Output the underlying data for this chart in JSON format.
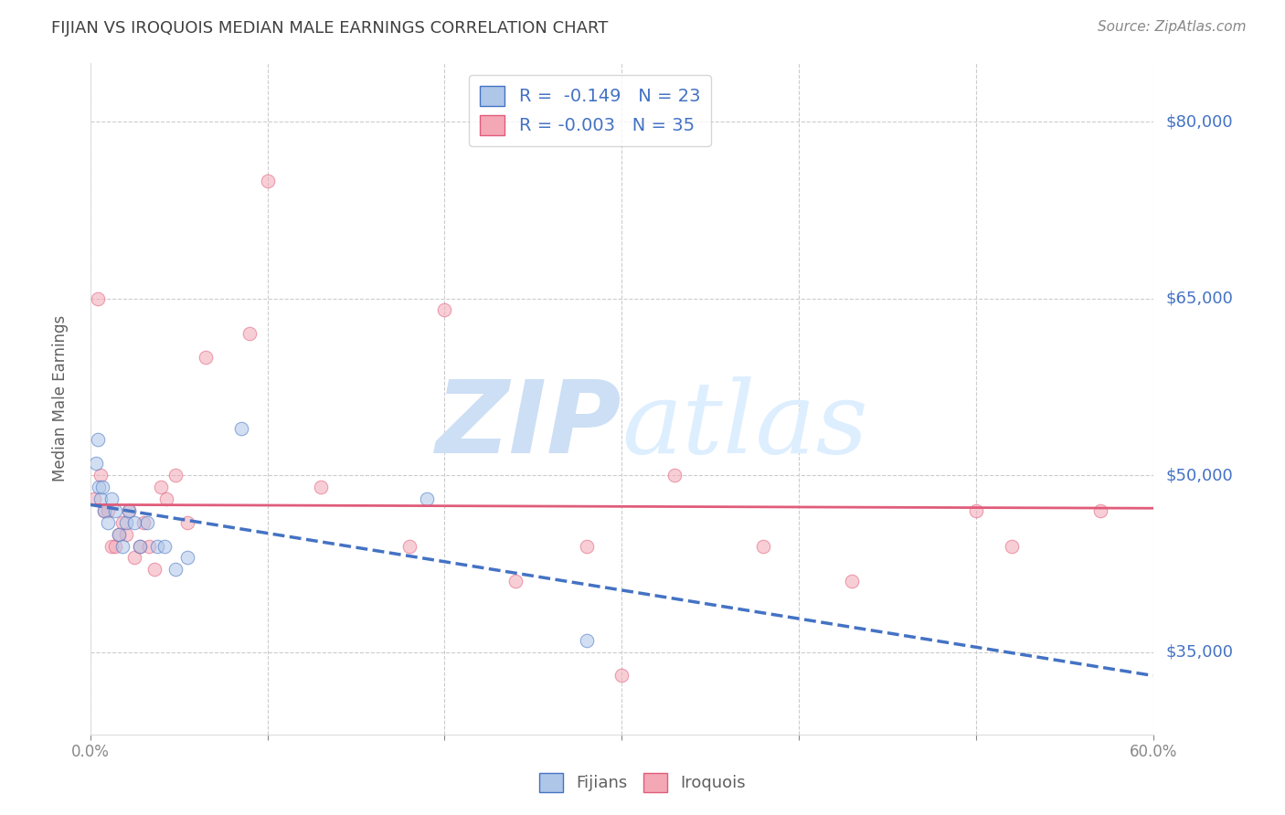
{
  "title": "FIJIAN VS IROQUOIS MEDIAN MALE EARNINGS CORRELATION CHART",
  "source": "Source: ZipAtlas.com",
  "ylabel": "Median Male Earnings",
  "watermark": "ZIPatlas",
  "xlim": [
    0.0,
    0.6
  ],
  "ylim": [
    28000,
    85000
  ],
  "yticks": [
    35000,
    50000,
    65000,
    80000
  ],
  "ytick_labels": [
    "$35,000",
    "$50,000",
    "$65,000",
    "$80,000"
  ],
  "xticks": [
    0.0,
    0.1,
    0.2,
    0.3,
    0.4,
    0.5,
    0.6
  ],
  "xtick_labels": [
    "0.0%",
    "",
    "",
    "",
    "",
    "",
    "60.0%"
  ],
  "fijians": {
    "x": [
      0.003,
      0.004,
      0.005,
      0.006,
      0.007,
      0.008,
      0.01,
      0.012,
      0.014,
      0.016,
      0.018,
      0.02,
      0.022,
      0.025,
      0.028,
      0.032,
      0.038,
      0.042,
      0.048,
      0.055,
      0.085,
      0.19,
      0.28
    ],
    "y": [
      51000,
      53000,
      49000,
      48000,
      49000,
      47000,
      46000,
      48000,
      47000,
      45000,
      44000,
      46000,
      47000,
      46000,
      44000,
      46000,
      44000,
      44000,
      42000,
      43000,
      54000,
      48000,
      36000
    ],
    "color": "#aec6e8",
    "line_color": "#4472c4",
    "R": -0.149,
    "N": 23
  },
  "iroquois": {
    "x": [
      0.002,
      0.004,
      0.006,
      0.008,
      0.01,
      0.012,
      0.014,
      0.016,
      0.018,
      0.02,
      0.022,
      0.025,
      0.028,
      0.03,
      0.033,
      0.036,
      0.04,
      0.043,
      0.048,
      0.055,
      0.065,
      0.09,
      0.13,
      0.18,
      0.24,
      0.28,
      0.33,
      0.38,
      0.43,
      0.5,
      0.52,
      0.57,
      0.1,
      0.2,
      0.3
    ],
    "y": [
      48000,
      65000,
      50000,
      47000,
      47000,
      44000,
      44000,
      45000,
      46000,
      45000,
      47000,
      43000,
      44000,
      46000,
      44000,
      42000,
      49000,
      48000,
      50000,
      46000,
      60000,
      62000,
      49000,
      44000,
      41000,
      44000,
      50000,
      44000,
      41000,
      47000,
      44000,
      47000,
      75000,
      64000,
      33000
    ],
    "color": "#f4a7b5",
    "line_color": "#e05c7a",
    "R": -0.003,
    "N": 35
  },
  "fijian_line": {
    "x0": 0.0,
    "x1": 0.6,
    "y0": 47500,
    "y1": 33000
  },
  "iroquois_line": {
    "x0": 0.0,
    "x1": 0.6,
    "y0": 47500,
    "y1": 47200
  },
  "background_color": "#ffffff",
  "grid_color": "#cccccc",
  "title_color": "#404040",
  "axis_label_color": "#606060",
  "tick_color_y": "#4472c4",
  "tick_color_x": "#888888",
  "watermark_color": "#dce8f5",
  "scatter_size": 110,
  "scatter_alpha": 0.55
}
